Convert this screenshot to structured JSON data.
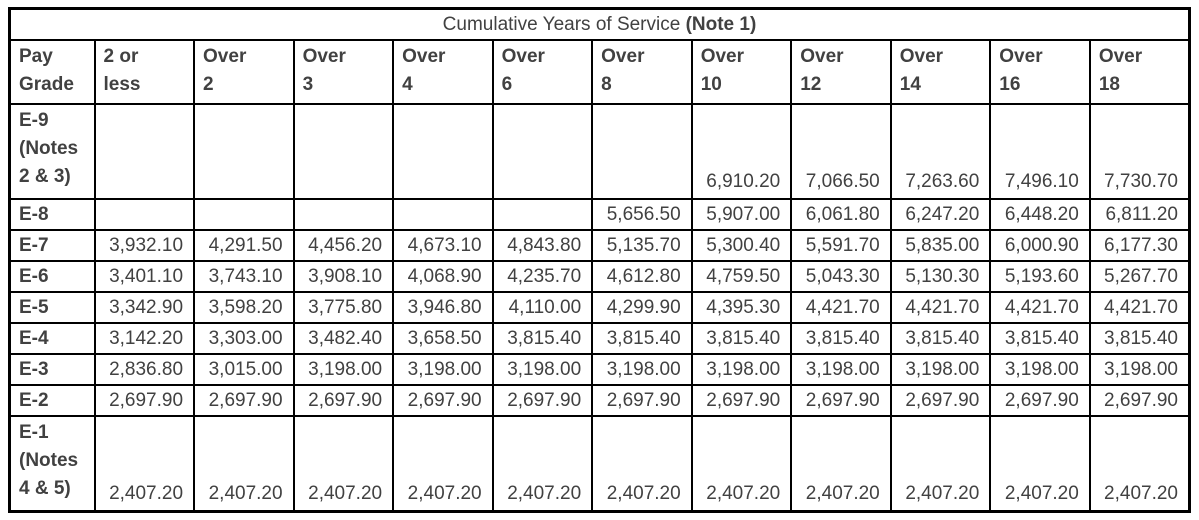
{
  "chart_data": {
    "type": "table",
    "title_regular": "Cumulative Years of Service",
    "title_bold": "(Note 1)",
    "columns": [
      [
        "Pay",
        "Grade"
      ],
      [
        "2 or",
        "less"
      ],
      [
        "Over",
        "2"
      ],
      [
        "Over",
        "3"
      ],
      [
        "Over",
        "4"
      ],
      [
        "Over",
        "6"
      ],
      [
        "Over",
        "8"
      ],
      [
        "Over",
        "10"
      ],
      [
        "Over",
        "12"
      ],
      [
        "Over",
        "14"
      ],
      [
        "Over",
        "16"
      ],
      [
        "Over",
        "18"
      ]
    ],
    "rows": [
      {
        "label_lines": [
          "E-9",
          "(Notes",
          "2 & 3)"
        ],
        "values": [
          "",
          "",
          "",
          "",
          "",
          "",
          "6,910.20",
          "7,066.50",
          "7,263.60",
          "7,496.10",
          "7,730.70"
        ]
      },
      {
        "label_lines": [
          "E-8"
        ],
        "values": [
          "",
          "",
          "",
          "",
          "",
          "5,656.50",
          "5,907.00",
          "6,061.80",
          "6,247.20",
          "6,448.20",
          "6,811.20"
        ]
      },
      {
        "label_lines": [
          "E-7"
        ],
        "values": [
          "3,932.10",
          "4,291.50",
          "4,456.20",
          "4,673.10",
          "4,843.80",
          "5,135.70",
          "5,300.40",
          "5,591.70",
          "5,835.00",
          "6,000.90",
          "6,177.30"
        ]
      },
      {
        "label_lines": [
          "E-6"
        ],
        "values": [
          "3,401.10",
          "3,743.10",
          "3,908.10",
          "4,068.90",
          "4,235.70",
          "4,612.80",
          "4,759.50",
          "5,043.30",
          "5,130.30",
          "5,193.60",
          "5,267.70"
        ]
      },
      {
        "label_lines": [
          "E-5"
        ],
        "values": [
          "3,342.90",
          "3,598.20",
          "3,775.80",
          "3,946.80",
          "4,110.00",
          "4,299.90",
          "4,395.30",
          "4,421.70",
          "4,421.70",
          "4,421.70",
          "4,421.70"
        ]
      },
      {
        "label_lines": [
          "E-4"
        ],
        "values": [
          "3,142.20",
          "3,303.00",
          "3,482.40",
          "3,658.50",
          "3,815.40",
          "3,815.40",
          "3,815.40",
          "3,815.40",
          "3,815.40",
          "3,815.40",
          "3,815.40"
        ]
      },
      {
        "label_lines": [
          "E-3"
        ],
        "values": [
          "2,836.80",
          "3,015.00",
          "3,198.00",
          "3,198.00",
          "3,198.00",
          "3,198.00",
          "3,198.00",
          "3,198.00",
          "3,198.00",
          "3,198.00",
          "3,198.00"
        ]
      },
      {
        "label_lines": [
          "E-2"
        ],
        "values": [
          "2,697.90",
          "2,697.90",
          "2,697.90",
          "2,697.90",
          "2,697.90",
          "2,697.90",
          "2,697.90",
          "2,697.90",
          "2,697.90",
          "2,697.90",
          "2,697.90"
        ]
      },
      {
        "label_lines": [
          "E-1",
          "(Notes",
          "4 & 5)"
        ],
        "values": [
          "2,407.20",
          "2,407.20",
          "2,407.20",
          "2,407.20",
          "2,407.20",
          "2,407.20",
          "2,407.20",
          "2,407.20",
          "2,407.20",
          "2,407.20",
          "2,407.20"
        ]
      }
    ]
  }
}
